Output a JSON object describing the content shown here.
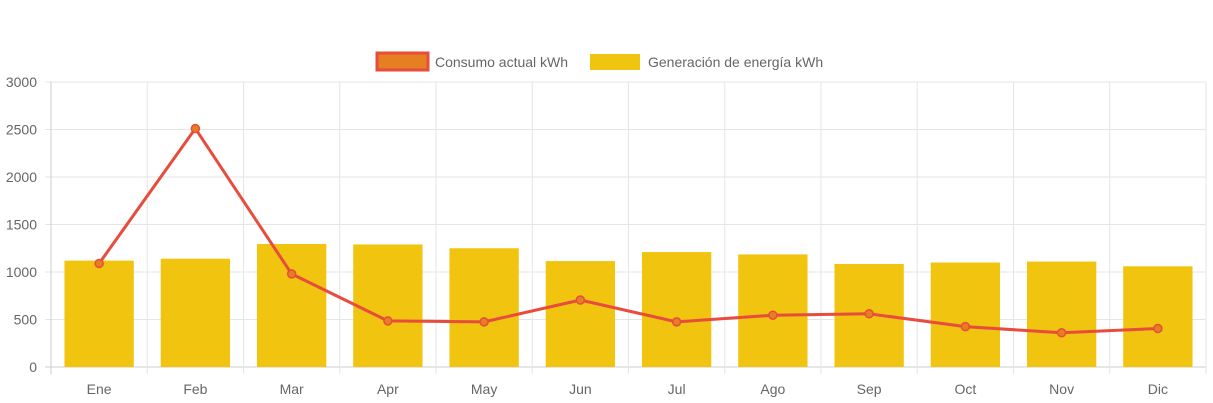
{
  "chart_data": {
    "type": "bar",
    "categories": [
      "Ene",
      "Feb",
      "Mar",
      "Apr",
      "May",
      "Jun",
      "Jul",
      "Ago",
      "Sep",
      "Oct",
      "Nov",
      "Dic"
    ],
    "series": [
      {
        "name": "Consumo actual kWh",
        "kind": "line",
        "color": "#e74c3c",
        "marker_color": "#e67e22",
        "values": [
          1090,
          2510,
          980,
          485,
          475,
          705,
          475,
          545,
          560,
          425,
          360,
          405
        ]
      },
      {
        "name": "Generación de energía kWh",
        "kind": "bar",
        "color": "#f1c40f",
        "values": [
          1120,
          1140,
          1295,
          1290,
          1250,
          1115,
          1210,
          1185,
          1085,
          1100,
          1110,
          1060
        ]
      }
    ],
    "y_ticks": [
      "0",
      "500",
      "1000",
      "1500",
      "2000",
      "2500",
      "3000"
    ],
    "ylim": [
      0,
      3000
    ],
    "grid": true,
    "legend_position": "top-center"
  }
}
